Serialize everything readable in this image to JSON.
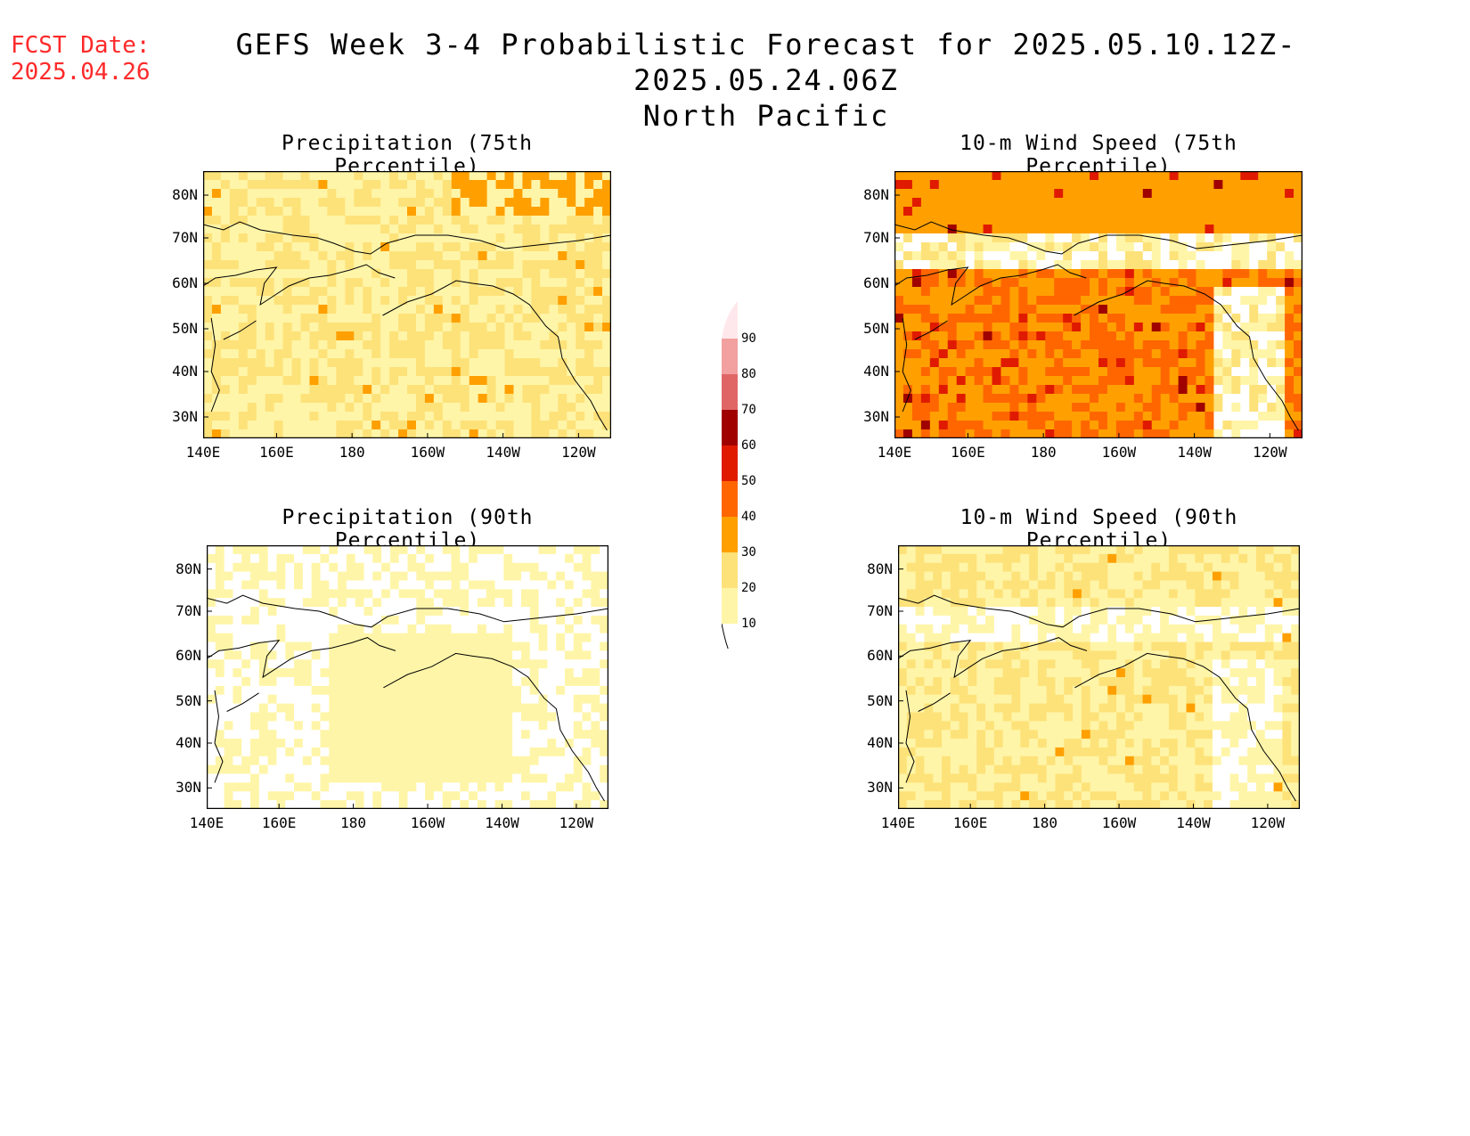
{
  "header": {
    "fcst_label": "FCST Date:",
    "fcst_date": "2025.04.26",
    "title_line1": "GEFS Week 3-4 Probabilistic Forecast for 2025.05.10.12Z-2025.05.24.06Z",
    "title_line2": "North Pacific"
  },
  "axes": {
    "lon_ticks": [
      "140E",
      "160E",
      "180",
      "160W",
      "140W",
      "120W"
    ],
    "lat_ticks": [
      "80N",
      "70N",
      "60N",
      "50N",
      "40N",
      "30N"
    ]
  },
  "panels": [
    {
      "id": "precip75",
      "title": "Precipitation (75th Percentile)",
      "dominant": "light",
      "hotspots": "some"
    },
    {
      "id": "wind75",
      "title": "10-m Wind Speed (75th Percentile)",
      "dominant": "orange",
      "hotspots": "many"
    },
    {
      "id": "precip90",
      "title": "Precipitation (90th Percentile)",
      "dominant": "white",
      "hotspots": "none"
    },
    {
      "id": "wind90",
      "title": "10-m Wind Speed (90th Percentile)",
      "dominant": "light",
      "hotspots": "few"
    }
  ],
  "colorbar": {
    "labels": [
      "90",
      "80",
      "70",
      "60",
      "50",
      "40",
      "30",
      "20",
      "10"
    ],
    "colors": [
      "#f2a0a0",
      "#e06666",
      "#a00000",
      "#e01a00",
      "#ff6600",
      "#ffa000",
      "#fde27a",
      "#fff5a8"
    ],
    "top_color": "#ffe8ec"
  },
  "palette": {
    "white": "#ffffff",
    "c10": "#fff5a8",
    "c20": "#fde27a",
    "c30": "#ffa000",
    "c40": "#ff6600",
    "c50": "#e01a00",
    "c60": "#a00000"
  }
}
